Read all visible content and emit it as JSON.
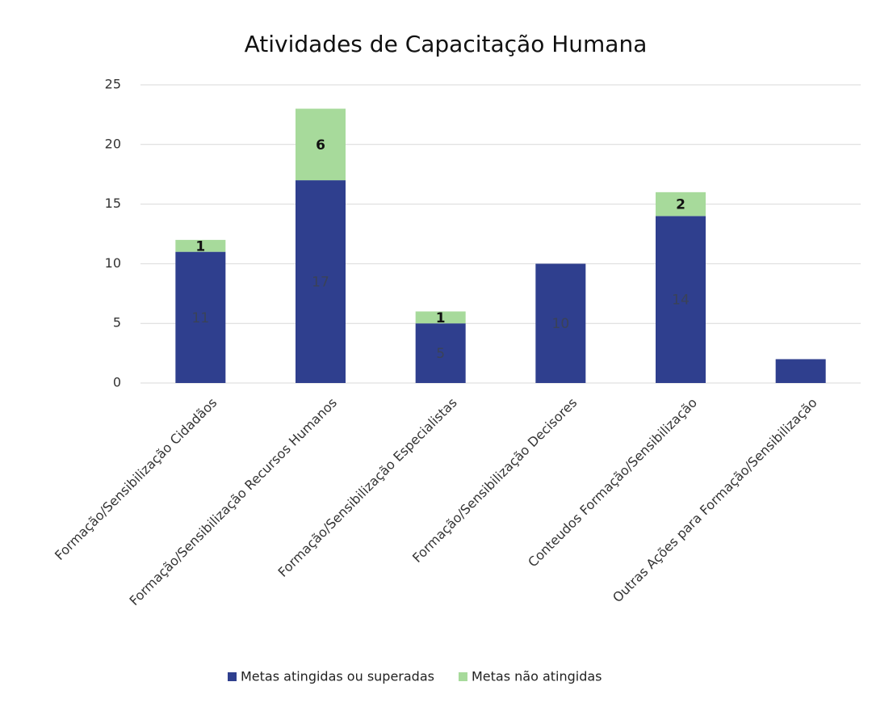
{
  "chart_data": {
    "type": "bar",
    "stacked": true,
    "title": "Atividades de Capacitação Humana",
    "categories": [
      "Formação/Sensibilização Cidadãos",
      "Formação/Sensibilização Recursos Humanos",
      "Formação/Sensibilização Especialistas",
      "Formação/Sensibilização Decisores",
      "Conteudos Formação/Sensibilização",
      "Outras Ações para Formação/Sensibilização"
    ],
    "series": [
      {
        "name": "Metas atingidas ou superadas",
        "color": "#2f3f8e",
        "values": [
          11,
          17,
          5,
          10,
          14,
          2
        ],
        "value_labels": [
          "11",
          "17",
          "5",
          "10",
          "14",
          null
        ]
      },
      {
        "name": "Metas não atingidas",
        "color": "#a7da9b",
        "values": [
          1,
          6,
          1,
          null,
          2,
          null
        ],
        "value_labels": [
          "1",
          "6",
          "1",
          null,
          "2",
          null
        ]
      }
    ],
    "ylim": [
      0,
      25
    ],
    "yticks": [
      0,
      5,
      10,
      15,
      20,
      25
    ],
    "grid": true,
    "legend": "bottom"
  }
}
